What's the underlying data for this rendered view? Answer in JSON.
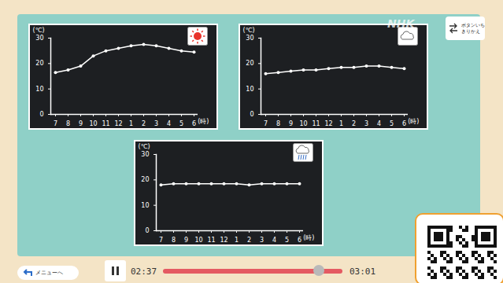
{
  "chart_data": [
    {
      "type": "line",
      "x_label": "(時)",
      "y_label": "(℃)",
      "categories": [
        "7",
        "8",
        "9",
        "10",
        "11",
        "12",
        "1",
        "2",
        "3",
        "4",
        "5",
        "6"
      ],
      "values": [
        16.5,
        17.5,
        19,
        23,
        25,
        26,
        27,
        27.5,
        27,
        26,
        25,
        24.5
      ],
      "ylim": [
        0,
        30
      ],
      "yticks": [
        0,
        10,
        20,
        30
      ],
      "color": "#ffffff",
      "marker": "circle",
      "grid": false
    },
    {
      "type": "line",
      "x_label": "(時)",
      "y_label": "(℃)",
      "categories": [
        "7",
        "8",
        "9",
        "10",
        "11",
        "12",
        "1",
        "2",
        "3",
        "4",
        "5",
        "6"
      ],
      "values": [
        16,
        16.5,
        17,
        17.5,
        17.5,
        18,
        18.5,
        18.5,
        19,
        19,
        18.5,
        18
      ],
      "ylim": [
        0,
        30
      ],
      "yticks": [
        0,
        10,
        20,
        30
      ],
      "color": "#ffffff",
      "marker": "circle",
      "grid": false
    },
    {
      "type": "line",
      "x_label": "(時)",
      "y_label": "(℃)",
      "categories": [
        "7",
        "8",
        "9",
        "10",
        "11",
        "12",
        "1",
        "2",
        "3",
        "4",
        "5",
        "6"
      ],
      "values": [
        18,
        18.5,
        18.5,
        18.5,
        18.5,
        18.5,
        18.5,
        18,
        18.5,
        18.5,
        18.5,
        18.5
      ],
      "ylim": [
        0,
        30
      ],
      "yticks": [
        0,
        10,
        20,
        30
      ],
      "color": "#ffffff",
      "marker": "circle",
      "grid": false
    }
  ],
  "player": {
    "logo": "NHK",
    "toggle_button": [
      "ボタンいち",
      "きりかえ"
    ],
    "menu_button": "メニューへ",
    "elapsed": "02:37",
    "duration": "03:01"
  }
}
